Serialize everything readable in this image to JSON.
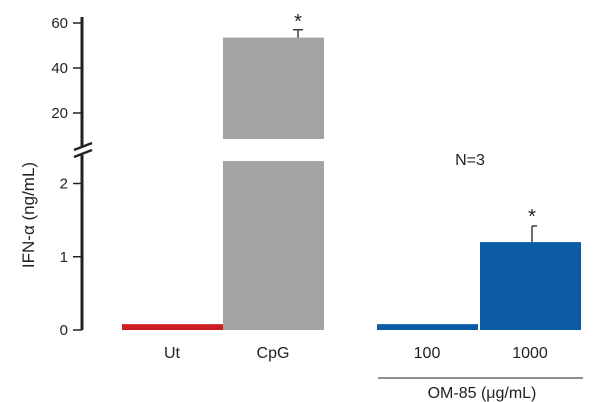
{
  "chart_data": {
    "type": "bar",
    "title": "",
    "ylabel": "IFN-α (ng/mL)",
    "xlabel": "",
    "categories": [
      "Ut",
      "CpG",
      "100",
      "1000"
    ],
    "values": [
      0.08,
      53.5,
      0.08,
      1.2
    ],
    "errors": [
      0,
      3.5,
      0,
      0.22
    ],
    "significance": [
      "",
      "*",
      "",
      "*"
    ],
    "bar_colors": [
      "#cc1f24",
      "#a3a3a3",
      "#0a5aa6",
      "#0a5aa6"
    ],
    "group_label": "OM-85 (μg/mL)",
    "group_members": [
      "100",
      "1000"
    ],
    "annotation": "N=3",
    "axis_break": true,
    "y_lower_ticks": [
      "0",
      "1",
      "2"
    ],
    "y_upper_ticks": [
      "20",
      "40",
      "60"
    ],
    "y_lower_range": [
      0,
      2.4
    ],
    "y_upper_range": [
      6,
      60
    ],
    "grid": false,
    "legend": "none"
  }
}
